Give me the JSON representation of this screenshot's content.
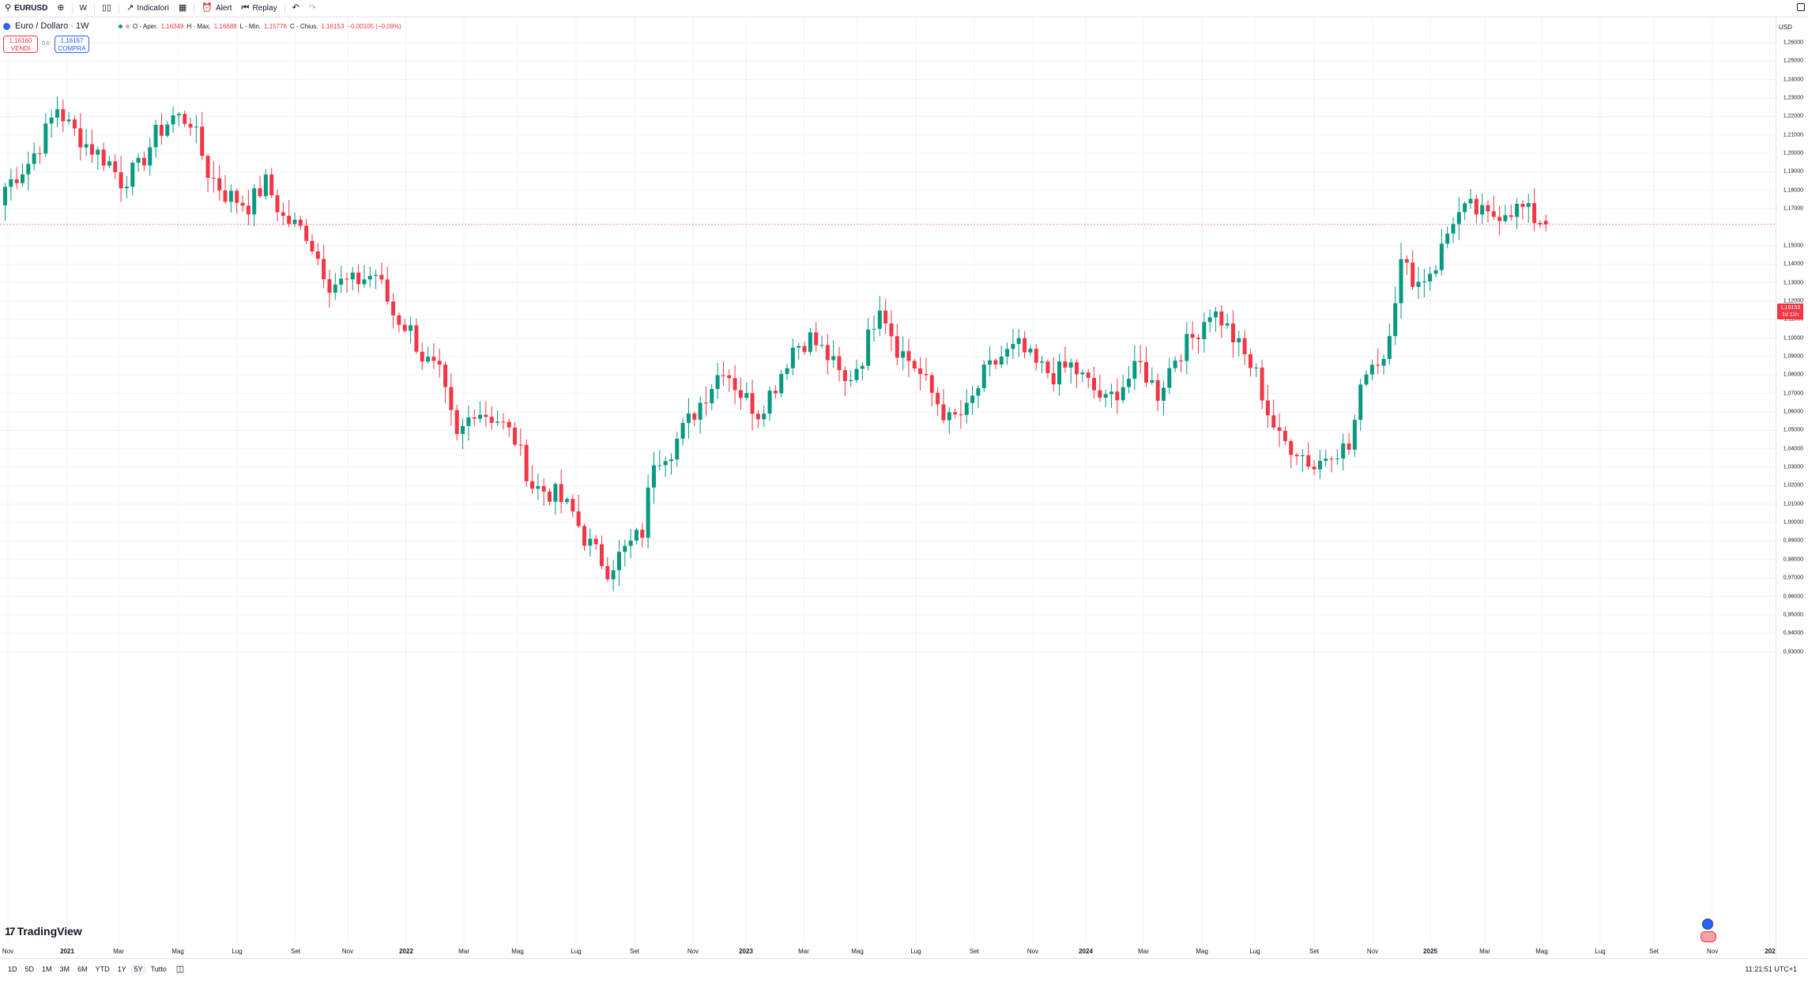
{
  "toolbar": {
    "symbol": "EURUSD",
    "interval": "W",
    "indicators_label": "Indicatori",
    "alert_label": "Alert",
    "replay_label": "Replay"
  },
  "legend": {
    "title": "Euro / Dollaro · 1W",
    "open_label": "O - Aper.",
    "open": "1,16349",
    "high_label": "H - Max.",
    "high": "1,16688",
    "low_label": "L - Min.",
    "low": "1,15776",
    "close_label": "C - Chius.",
    "close": "1,16153",
    "change": "−0,00105 (−0,09%)"
  },
  "trade": {
    "sell_price": "1,16160",
    "sell_label": "VENDI",
    "spread": "0,0",
    "buy_price": "1,16167",
    "buy_label": "COMPRA"
  },
  "price_axis": {
    "currency": "USD",
    "labels": [
      "1,26000",
      "1,25000",
      "1,24000",
      "1,23000",
      "1,22000",
      "1,21000",
      "1,20000",
      "1,19000",
      "1,18000",
      "1,17000",
      "1,15000",
      "1,14000",
      "1,13000",
      "1,12000",
      "1,11000",
      "1,10000",
      "1,09000",
      "1,08000",
      "1,07000",
      "1,06000",
      "1,05000",
      "1,04000",
      "1,03000",
      "1,02000",
      "1,01000",
      "1,00000",
      "0,99000",
      "0,98000",
      "0,97000",
      "0,96000",
      "0,95000",
      "0,94000",
      "0,93000"
    ],
    "last_price": "1,16153",
    "countdown": "1d 11h"
  },
  "time_axis": {
    "labels": [
      "Nov",
      "2021",
      "Mar",
      "Mag",
      "Lug",
      "Set",
      "Nov",
      "2022",
      "Mar",
      "Mag",
      "Lug",
      "Set",
      "Nov",
      "2023",
      "Mar",
      "Mag",
      "Lug",
      "Set",
      "Nov",
      "2024",
      "Mar",
      "Mag",
      "Lug",
      "Set",
      "Nov",
      "2025",
      "Mar",
      "Mag",
      "Lug",
      "Set",
      "Nov",
      "202"
    ]
  },
  "bottom_bar": {
    "ranges": [
      "1D",
      "5D",
      "1M",
      "3M",
      "6M",
      "YTD",
      "1Y",
      "5Y",
      "Tutto"
    ],
    "active_range": "5Y",
    "time": "11:21:51 UTC+1"
  },
  "branding": {
    "logo_text": "TradingView"
  },
  "colors": {
    "up": "#089981",
    "down": "#f23645",
    "grid": "#f0f3fa",
    "last_price_line": "#f23645"
  },
  "chart_data": {
    "type": "candlestick",
    "symbol": "EURUSD",
    "interval": "1W",
    "ylim": [
      0.93,
      1.265
    ],
    "x_range": [
      "2020-11",
      "2025-11"
    ],
    "anchors": [
      [
        0,
        1.182
      ],
      [
        4,
        1.195
      ],
      [
        6,
        1.205
      ],
      [
        9,
        1.225
      ],
      [
        11,
        1.215
      ],
      [
        14,
        1.205
      ],
      [
        18,
        1.195
      ],
      [
        20,
        1.185
      ],
      [
        23,
        1.192
      ],
      [
        26,
        1.21
      ],
      [
        29,
        1.22
      ],
      [
        32,
        1.218
      ],
      [
        35,
        1.19
      ],
      [
        38,
        1.178
      ],
      [
        42,
        1.172
      ],
      [
        45,
        1.184
      ],
      [
        48,
        1.165
      ],
      [
        52,
        1.157
      ],
      [
        56,
        1.13
      ],
      [
        60,
        1.13
      ],
      [
        64,
        1.135
      ],
      [
        67,
        1.113
      ],
      [
        70,
        1.104
      ],
      [
        72,
        1.09
      ],
      [
        75,
        1.08
      ],
      [
        78,
        1.045
      ],
      [
        81,
        1.062
      ],
      [
        85,
        1.056
      ],
      [
        88,
        1.045
      ],
      [
        91,
        1.02
      ],
      [
        95,
        1.015
      ],
      [
        98,
        1.005
      ],
      [
        100,
        0.992
      ],
      [
        104,
        0.975
      ],
      [
        107,
        0.985
      ],
      [
        110,
        0.995
      ],
      [
        112,
        1.035
      ],
      [
        115,
        1.04
      ],
      [
        118,
        1.055
      ],
      [
        121,
        1.07
      ],
      [
        124,
        1.085
      ],
      [
        127,
        1.07
      ],
      [
        130,
        1.06
      ],
      [
        133,
        1.075
      ],
      [
        136,
        1.095
      ],
      [
        139,
        1.1
      ],
      [
        142,
        1.09
      ],
      [
        145,
        1.075
      ],
      [
        148,
        1.09
      ],
      [
        151,
        1.12
      ],
      [
        154,
        1.095
      ],
      [
        157,
        1.085
      ],
      [
        160,
        1.07
      ],
      [
        163,
        1.055
      ],
      [
        166,
        1.06
      ],
      [
        169,
        1.08
      ],
      [
        172,
        1.09
      ],
      [
        175,
        1.095
      ],
      [
        178,
        1.085
      ],
      [
        181,
        1.08
      ],
      [
        184,
        1.085
      ],
      [
        187,
        1.075
      ],
      [
        190,
        1.065
      ],
      [
        193,
        1.075
      ],
      [
        196,
        1.085
      ],
      [
        199,
        1.07
      ],
      [
        202,
        1.09
      ],
      [
        205,
        1.1
      ],
      [
        208,
        1.115
      ],
      [
        210,
        1.11
      ],
      [
        213,
        1.095
      ],
      [
        216,
        1.08
      ],
      [
        218,
        1.06
      ],
      [
        220,
        1.045
      ],
      [
        223,
        1.04
      ],
      [
        226,
        1.03
      ],
      [
        229,
        1.04
      ],
      [
        232,
        1.04
      ],
      [
        235,
        1.085
      ],
      [
        238,
        1.09
      ],
      [
        241,
        1.14
      ],
      [
        244,
        1.13
      ],
      [
        247,
        1.14
      ],
      [
        250,
        1.165
      ],
      [
        253,
        1.17
      ],
      [
        256,
        1.165
      ],
      [
        259,
        1.17
      ],
      [
        262,
        1.17
      ],
      [
        264,
        1.165
      ],
      [
        266,
        1.1615
      ]
    ],
    "last": {
      "open": 1.16349,
      "high": 1.16688,
      "low": 1.15776,
      "close": 1.16153
    }
  }
}
